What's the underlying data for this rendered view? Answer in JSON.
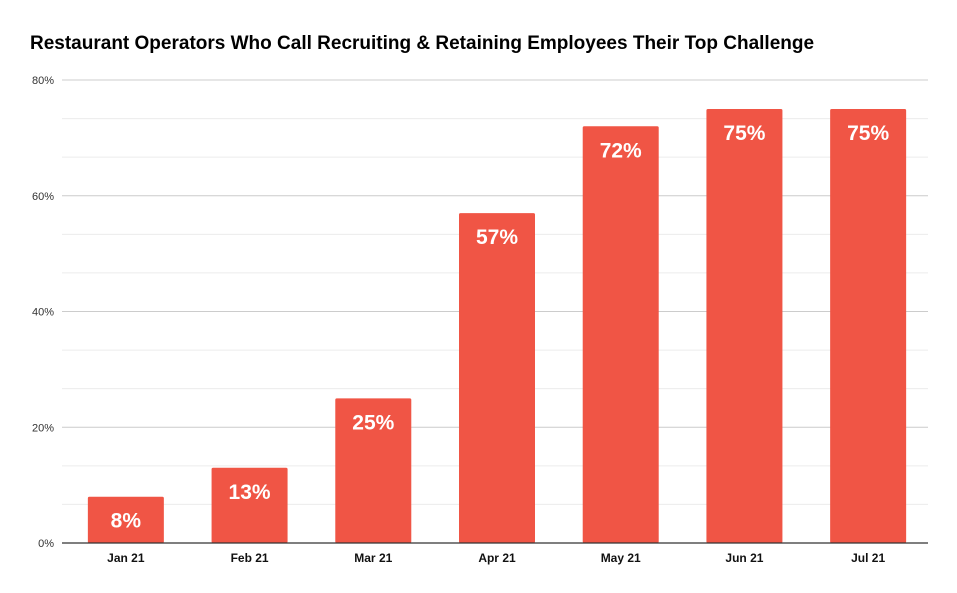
{
  "chart_data": {
    "type": "bar",
    "title": "Restaurant Operators Who Call Recruiting & Retaining Employees Their Top Challenge",
    "xlabel": "",
    "ylabel": "",
    "categories": [
      "Jan 21",
      "Feb 21",
      "Mar 21",
      "Apr 21",
      "May 21",
      "Jun 21",
      "Jul 21"
    ],
    "values": [
      8,
      13,
      25,
      57,
      72,
      75,
      75
    ],
    "data_labels": [
      "8%",
      "13%",
      "25%",
      "57%",
      "72%",
      "75%",
      "75%"
    ],
    "ylim": [
      0,
      80
    ],
    "yticks": [
      0,
      20,
      40,
      60,
      80
    ],
    "ytick_labels": [
      "0%",
      "20%",
      "40%",
      "60%",
      "80%"
    ],
    "grid": true,
    "bar_color": "#f05545"
  }
}
